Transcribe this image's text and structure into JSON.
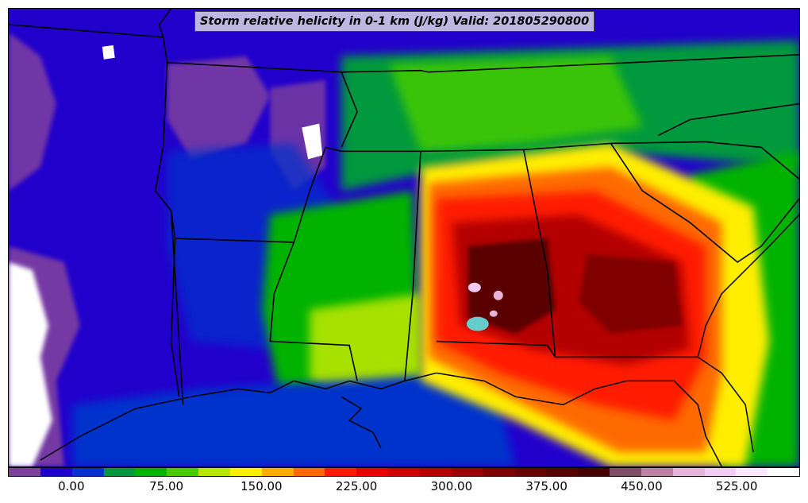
{
  "title": "Storm relative helicity in 0-1 km (J/kg) Valid: 201805290800",
  "colorbar": {
    "colors": [
      "#7f3f9f",
      "#2200cc",
      "#0033cc",
      "#00993c",
      "#00b300",
      "#44cc00",
      "#b8e600",
      "#ffee00",
      "#ffaa00",
      "#ff6a00",
      "#ff1a00",
      "#e60000",
      "#cc0000",
      "#b30000",
      "#990000",
      "#800000",
      "#6b0000",
      "#5a0000",
      "#460000",
      "#7f4d66",
      "#bf80a6",
      "#e6b3d9",
      "#f2ccf2",
      "#ffe6ff",
      "#ffffff"
    ],
    "ticks": [
      {
        "label": "0.00",
        "value": 0
      },
      {
        "label": "75.00",
        "value": 75
      },
      {
        "label": "150.00",
        "value": 150
      },
      {
        "label": "225.00",
        "value": 225
      },
      {
        "label": "300.00",
        "value": 300
      },
      {
        "label": "375.00",
        "value": 375
      },
      {
        "label": "450.00",
        "value": 450
      },
      {
        "label": "525.00",
        "value": 525
      }
    ],
    "range": [
      -50,
      575
    ]
  }
}
